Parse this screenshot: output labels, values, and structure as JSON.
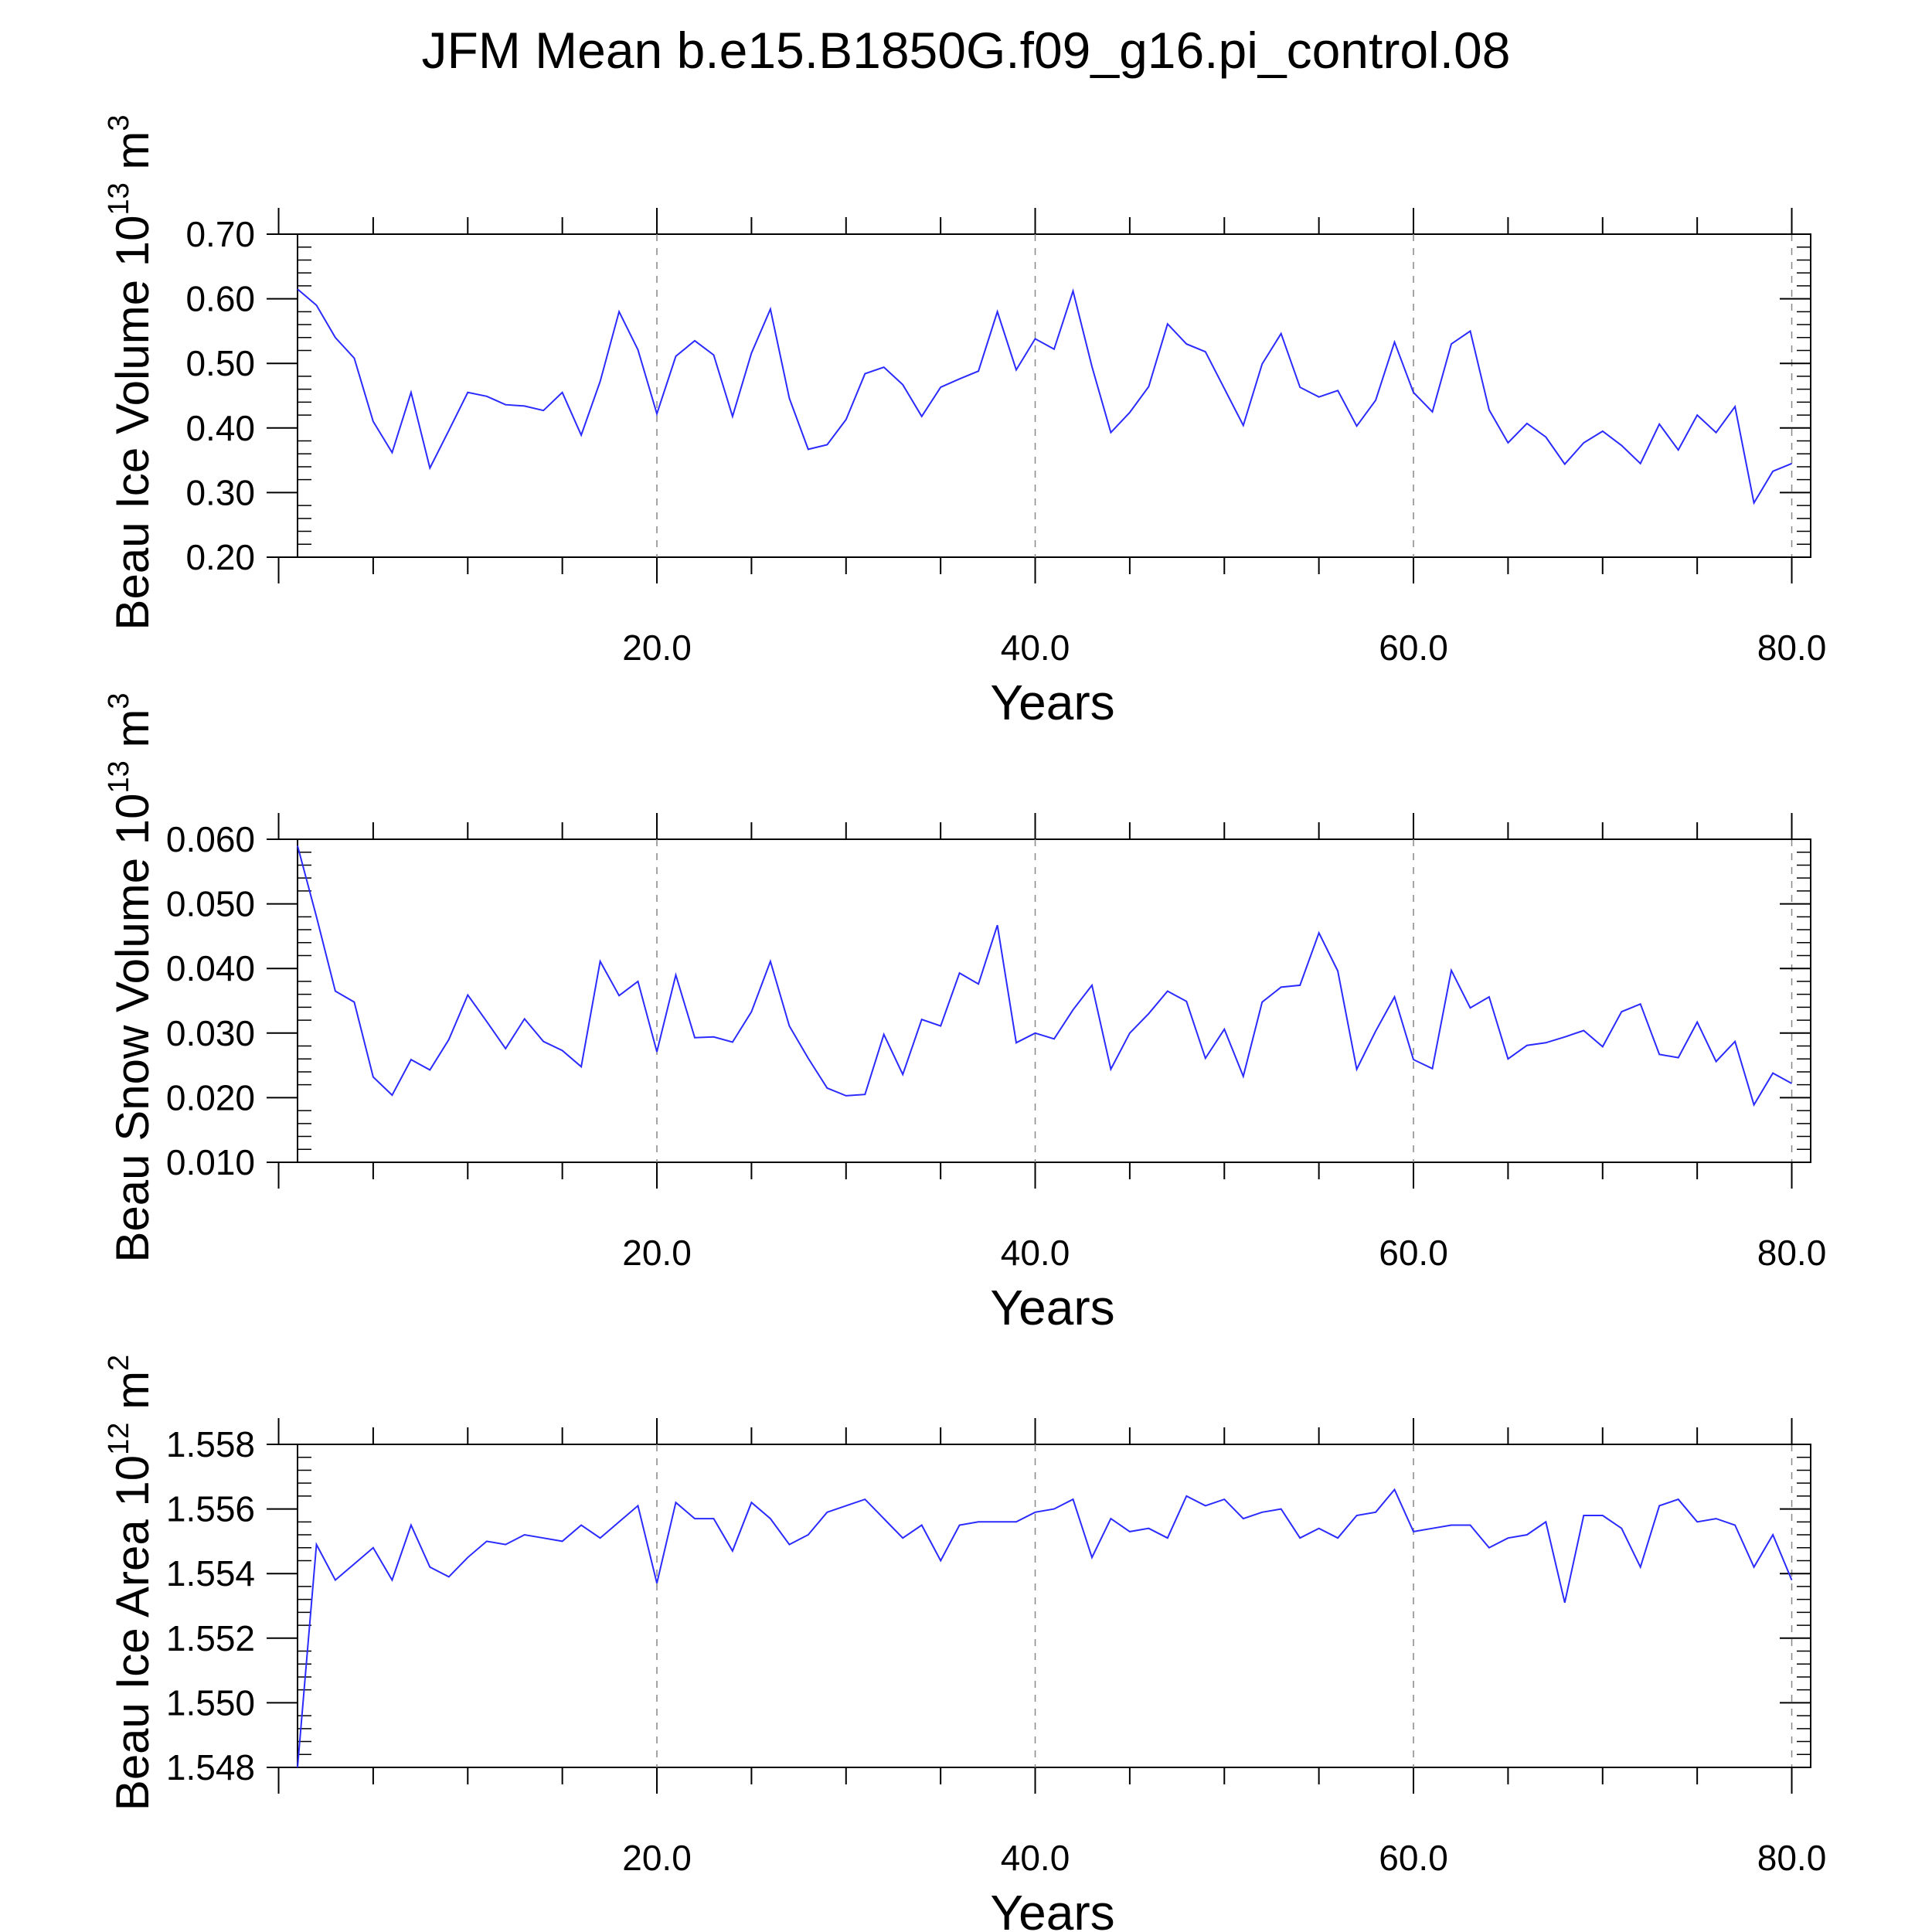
{
  "figure": {
    "title": "JFM Mean b.e15.B1850G.f09_g16.pi_control.08",
    "line_color": "#2b2bff"
  },
  "chart_data": [
    {
      "type": "line",
      "title": "",
      "xlabel": "Years",
      "ylabel": {
        "pre": "Beau Ice Volume 10",
        "sup": "13",
        "post": " m",
        "unit_sup": "3"
      },
      "xlim": [
        1,
        81
      ],
      "ylim": [
        0.2,
        0.7
      ],
      "x_ticks": [
        20,
        40,
        60,
        80
      ],
      "x_tick_labels": [
        "20.0",
        "40.0",
        "60.0",
        "80.0"
      ],
      "y_ticks": [
        0.2,
        0.3,
        0.4,
        0.5,
        0.6,
        0.7
      ],
      "y_tick_labels": [
        "0.20",
        "0.30",
        "0.40",
        "0.50",
        "0.60",
        "0.70"
      ],
      "grid": "dashed vertical at x ticks",
      "series": [
        {
          "name": "Beau Ice Volume",
          "x_start": 1,
          "values": [
            0.615,
            0.59,
            0.54,
            0.508,
            0.41,
            0.362,
            0.455,
            0.338,
            0.396,
            0.455,
            0.449,
            0.436,
            0.434,
            0.427,
            0.455,
            0.389,
            0.472,
            0.58,
            0.521,
            0.422,
            0.511,
            0.535,
            0.513,
            0.418,
            0.516,
            0.584,
            0.446,
            0.367,
            0.374,
            0.413,
            0.484,
            0.494,
            0.467,
            0.418,
            0.463,
            0.476,
            0.488,
            0.58,
            0.49,
            0.538,
            0.522,
            0.612,
            0.495,
            0.393,
            0.424,
            0.464,
            0.561,
            0.53,
            0.518,
            0.461,
            0.404,
            0.499,
            0.546,
            0.463,
            0.448,
            0.458,
            0.403,
            0.443,
            0.533,
            0.455,
            0.425,
            0.53,
            0.55,
            0.428,
            0.377,
            0.407,
            0.386,
            0.344,
            0.377,
            0.395,
            0.373,
            0.345,
            0.406,
            0.366,
            0.42,
            0.393,
            0.433,
            0.284,
            0.333,
            0.345
          ]
        }
      ]
    },
    {
      "type": "line",
      "title": "",
      "xlabel": "Years",
      "ylabel": {
        "pre": "Beau Snow Volume 10",
        "sup": "13",
        "post": " m",
        "unit_sup": "3"
      },
      "xlim": [
        1,
        81
      ],
      "ylim": [
        0.01,
        0.06
      ],
      "x_ticks": [
        20,
        40,
        60,
        80
      ],
      "x_tick_labels": [
        "20.0",
        "40.0",
        "60.0",
        "80.0"
      ],
      "y_ticks": [
        0.01,
        0.02,
        0.03,
        0.04,
        0.05,
        0.06
      ],
      "y_tick_labels": [
        "0.010",
        "0.020",
        "0.030",
        "0.040",
        "0.050",
        "0.060"
      ],
      "grid": "dashed vertical at x ticks",
      "series": [
        {
          "name": "Beau Snow Volume",
          "x_start": 1,
          "values": [
            0.059,
            0.048,
            0.0365,
            0.0348,
            0.0232,
            0.0204,
            0.0259,
            0.0243,
            0.029,
            0.0359,
            0.0318,
            0.0276,
            0.0322,
            0.0287,
            0.0273,
            0.0248,
            0.0411,
            0.0358,
            0.038,
            0.0271,
            0.039,
            0.0293,
            0.0294,
            0.0286,
            0.0333,
            0.0411,
            0.0311,
            0.0261,
            0.0215,
            0.0203,
            0.0205,
            0.0298,
            0.0236,
            0.0321,
            0.0311,
            0.0393,
            0.0376,
            0.0467,
            0.0285,
            0.03,
            0.0291,
            0.0336,
            0.0374,
            0.0244,
            0.03,
            0.033,
            0.0365,
            0.0349,
            0.0261,
            0.0306,
            0.0233,
            0.0348,
            0.0371,
            0.0374,
            0.0455,
            0.0396,
            0.0244,
            0.0303,
            0.0356,
            0.0259,
            0.0245,
            0.0397,
            0.0339,
            0.0356,
            0.026,
            0.0281,
            0.0285,
            0.0294,
            0.0304,
            0.0279,
            0.0333,
            0.0345,
            0.0267,
            0.0262,
            0.0317,
            0.0256,
            0.0287,
            0.0189,
            0.0238,
            0.0222
          ]
        }
      ]
    },
    {
      "type": "line",
      "title": "",
      "xlabel": "Years",
      "ylabel": {
        "pre": "Beau Ice Area 10",
        "sup": "12",
        "post": " m",
        "unit_sup": "2"
      },
      "xlim": [
        1,
        81
      ],
      "ylim": [
        1.548,
        1.558
      ],
      "x_ticks": [
        20,
        40,
        60,
        80
      ],
      "x_tick_labels": [
        "20.0",
        "40.0",
        "60.0",
        "80.0"
      ],
      "y_ticks": [
        1.548,
        1.55,
        1.552,
        1.554,
        1.556,
        1.558
      ],
      "y_tick_labels": [
        "1.548",
        "1.550",
        "1.552",
        "1.554",
        "1.556",
        "1.558"
      ],
      "grid": "dashed vertical at x ticks",
      "series": [
        {
          "name": "Beau Ice Area",
          "x_start": 1,
          "values": [
            1.548,
            1.5549,
            1.5538,
            1.5543,
            1.5548,
            1.5538,
            1.5555,
            1.5542,
            1.5539,
            1.5545,
            1.555,
            1.5549,
            1.5552,
            1.5551,
            1.555,
            1.5555,
            1.5551,
            1.5556,
            1.5561,
            1.5537,
            1.5562,
            1.5557,
            1.5557,
            1.5547,
            1.5562,
            1.5557,
            1.5549,
            1.5552,
            1.5559,
            1.5561,
            1.5563,
            1.5557,
            1.5551,
            1.5555,
            1.5544,
            1.5555,
            1.5556,
            1.5556,
            1.5556,
            1.5559,
            1.556,
            1.5563,
            1.5545,
            1.5557,
            1.5553,
            1.5554,
            1.5551,
            1.5564,
            1.5561,
            1.5563,
            1.5557,
            1.5559,
            1.556,
            1.5551,
            1.5554,
            1.5551,
            1.5558,
            1.5559,
            1.5566,
            1.5553,
            1.5554,
            1.5555,
            1.5555,
            1.5548,
            1.5551,
            1.5552,
            1.5556,
            1.5531,
            1.5558,
            1.5558,
            1.5554,
            1.5542,
            1.5561,
            1.5563,
            1.5556,
            1.5557,
            1.5555,
            1.5542,
            1.5552,
            1.5538
          ]
        }
      ]
    }
  ]
}
